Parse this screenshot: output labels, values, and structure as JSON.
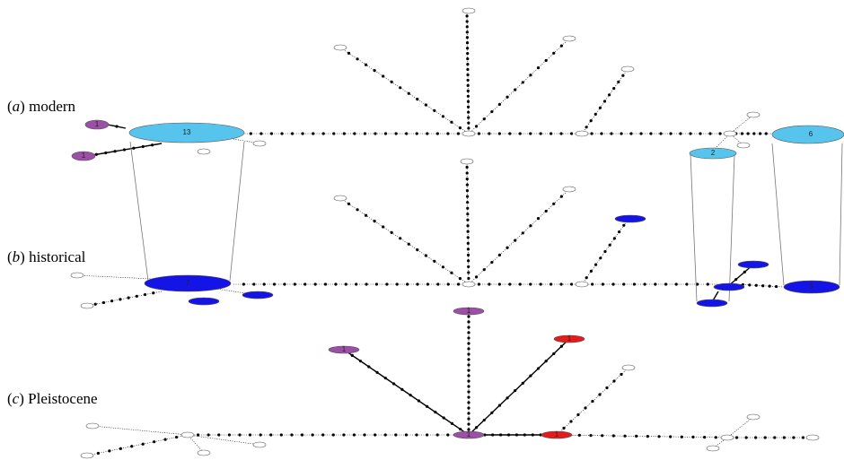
{
  "panels": [
    {
      "letter": "a",
      "label": "modern"
    },
    {
      "letter": "b",
      "label": "historical"
    },
    {
      "letter": "c",
      "label": "Pleistocene"
    }
  ],
  "colors": {
    "modern": "#57C4EE",
    "historical": "#1414E6",
    "pleistocene_purple": "#9B4FA6",
    "pleistocene_red": "#E51A1A",
    "missing_node": "#ffffff",
    "edge": "#000000"
  },
  "node_labels": {
    "modern_13": "13",
    "modern_6": "6",
    "modern_2": "2",
    "modern_1a": "1",
    "modern_1b": "1",
    "historical_7": "7",
    "historical_5": "5",
    "pleistocene_1_top": "1",
    "pleistocene_1_left": "1",
    "pleistocene_1_right": "1",
    "pleistocene_1_mid": "1",
    "pleistocene_1_center": "1"
  }
}
